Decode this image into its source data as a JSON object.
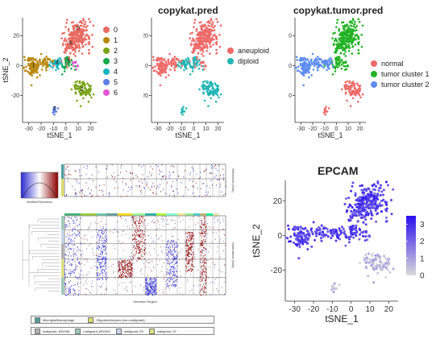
{
  "panels": [
    {
      "title": "",
      "color_by": "cluster",
      "legend": [
        {
          "label": "0",
          "color": "#e96b60"
        },
        {
          "label": "1",
          "color": "#b8860b"
        },
        {
          "label": "2",
          "color": "#7aa51a"
        },
        {
          "label": "3",
          "color": "#1aa84a"
        },
        {
          "label": "4",
          "color": "#19b2bf"
        },
        {
          "label": "5",
          "color": "#5e7fe8"
        },
        {
          "label": "6",
          "color": "#e256d6"
        }
      ],
      "cluster_labels": [
        "0",
        "1",
        "2",
        "3",
        "4",
        "5",
        "6"
      ]
    },
    {
      "title": "copykat.pred",
      "color_by": "ploidy",
      "legend": [
        {
          "label": "aneuploid",
          "color": "#ee6a68"
        },
        {
          "label": "diploid",
          "color": "#21b5b5"
        }
      ]
    },
    {
      "title": "copykat.tumor.pred",
      "color_by": "tumor",
      "legend": [
        {
          "label": "normal",
          "color": "#ee6a68"
        },
        {
          "label": "tumor cluster 1",
          "color": "#22b325"
        },
        {
          "label": "tumor cluster 2",
          "color": "#5c8cf0"
        }
      ]
    }
  ],
  "chart_data": [
    {
      "type": "scatter",
      "title": "",
      "xlabel": "tSNE_1",
      "ylabel": "tSNE_2",
      "xlim": [
        -35,
        25
      ],
      "ylim": [
        -38,
        32
      ],
      "xticks": [
        "-30",
        "-20",
        "-10",
        "0",
        "10",
        "20"
      ],
      "yticks": [
        "-20",
        "0",
        "20"
      ],
      "grid": false
    },
    {
      "type": "scatter",
      "title": "copykat.pred",
      "xlabel": "tSNE_1",
      "ylabel": "tSNE_2",
      "xlim": [
        -35,
        25
      ],
      "ylim": [
        -38,
        32
      ],
      "xticks": [
        "-30",
        "-20",
        "-10",
        "0",
        "10",
        "20"
      ],
      "yticks": [
        "-20",
        "0",
        "20"
      ],
      "legend_position": "right"
    },
    {
      "type": "scatter",
      "title": "copykat.tumor.pred",
      "xlabel": "tSNE_1",
      "ylabel": "tSNE_2",
      "xlim": [
        -35,
        25
      ],
      "ylim": [
        -38,
        32
      ],
      "xticks": [
        "-30",
        "-20",
        "-10",
        "0",
        "10",
        "20"
      ],
      "yticks": [
        "-20",
        "0",
        "20"
      ],
      "legend_position": "right"
    },
    {
      "type": "heatmap",
      "title": "",
      "xlabel": "Genomic Region",
      "ylabel_top": "References (Cells)",
      "ylabel_bottom": "Observations (Cells)",
      "colorbar_label": "Modified Expression",
      "legend_top": [
        {
          "label": "Microglia/Macrophage",
          "color": "#4fa0a0"
        },
        {
          "label": "Oligodendrocytes (non-malignant)",
          "color": "#dcdc6a"
        }
      ],
      "legend_bottom": [
        {
          "label": "malignant_MGH36",
          "color": "#b0b0b0"
        },
        {
          "label": "malignant_MGH53",
          "color": "#9bc9b8"
        },
        {
          "label": "malignant_93",
          "color": "#c6d5f0"
        },
        {
          "label": "malignant_97",
          "color": "#e0e080"
        }
      ]
    },
    {
      "type": "scatter",
      "title": "EPCAM",
      "xlabel": "tSNE_1",
      "ylabel": "tSNE_2",
      "xlim": [
        -35,
        25
      ],
      "ylim": [
        -38,
        32
      ],
      "xticks": [
        "-30",
        "-20",
        "-10",
        "0",
        "10",
        "20"
      ],
      "yticks": [
        "-20",
        "0",
        "20"
      ],
      "colorbar": {
        "min": 0,
        "max": 3.5,
        "ticks": [
          "0",
          "1",
          "2",
          "3"
        ],
        "low": "#d9d9d9",
        "high": "#2a0ff0"
      },
      "grid": false
    }
  ]
}
